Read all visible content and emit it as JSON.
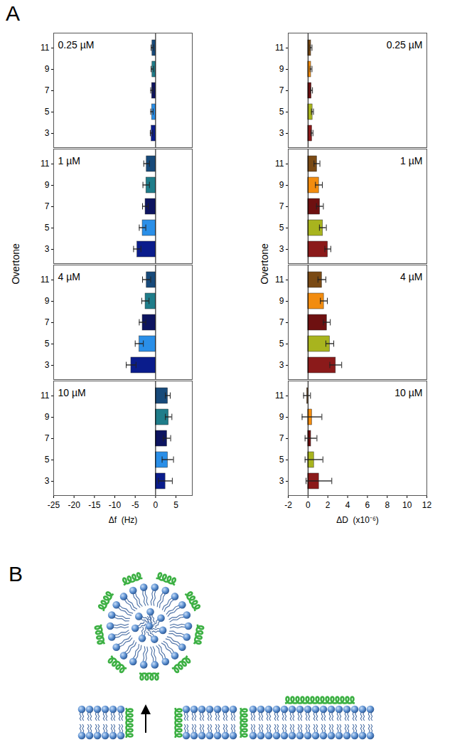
{
  "chart_data": [
    {
      "type": "bar",
      "orientation": "horizontal",
      "title": "0.25 µM",
      "tick_labels": "y",
      "categories": [
        "11",
        "9",
        "7",
        "5",
        "3"
      ],
      "values": [
        -0.8,
        -0.8,
        -0.9,
        -0.9,
        -1.0
      ],
      "errors": [
        0.3,
        0.3,
        0.3,
        0.3,
        0.3
      ],
      "colors": [
        "#174a7a",
        "#1f7d8a",
        "#0d1460",
        "#2a8fe8",
        "#0a1c8c"
      ],
      "xlim": [
        -25,
        9
      ],
      "xticks": [
        -25,
        -20,
        -15,
        -10,
        -5,
        0,
        5
      ]
    },
    {
      "type": "bar",
      "orientation": "horizontal",
      "title": "1 µM",
      "tick_labels": "y",
      "ylabel": "Overtone",
      "categories": [
        "11",
        "9",
        "7",
        "5",
        "3"
      ],
      "values": [
        -2.2,
        -2.3,
        -2.5,
        -3.2,
        -4.5
      ],
      "errors": [
        0.7,
        0.8,
        0.7,
        0.8,
        0.9
      ],
      "colors": [
        "#174a7a",
        "#1f7d8a",
        "#0d1460",
        "#2a8fe8",
        "#0a1c8c"
      ],
      "xlim": [
        -25,
        9
      ],
      "xticks": [
        -25,
        -20,
        -15,
        -10,
        -5,
        0,
        5
      ]
    },
    {
      "type": "bar",
      "orientation": "horizontal",
      "title": "4 µM",
      "tick_labels": "y",
      "categories": [
        "11",
        "9",
        "7",
        "5",
        "3"
      ],
      "values": [
        -2.2,
        -2.5,
        -3.2,
        -4.0,
        -6.0
      ],
      "errors": [
        1.0,
        0.9,
        0.8,
        1.0,
        1.2
      ],
      "colors": [
        "#174a7a",
        "#1f7d8a",
        "#0d1460",
        "#2a8fe8",
        "#0a1c8c"
      ],
      "xlim": [
        -25,
        9
      ],
      "xticks": [
        -25,
        -20,
        -15,
        -10,
        -5,
        0,
        5
      ]
    },
    {
      "type": "bar",
      "orientation": "horizontal",
      "title": "10 µM",
      "xlabel": "Δf  (Hz)",
      "categories": [
        "11",
        "9",
        "7",
        "5",
        "3"
      ],
      "values": [
        3.0,
        3.2,
        2.8,
        3.0,
        2.4
      ],
      "errors": [
        0.6,
        0.8,
        0.9,
        1.4,
        1.7
      ],
      "colors": [
        "#174a7a",
        "#1f7d8a",
        "#0d1460",
        "#2a8fe8",
        "#0a1c8c"
      ],
      "xlim": [
        -25,
        9
      ],
      "xticks": [
        -25,
        -20,
        -15,
        -10,
        -5,
        0,
        5
      ]
    },
    {
      "type": "bar",
      "orientation": "horizontal",
      "title": "0.25 µM",
      "tick_labels": "y",
      "categories": [
        "11",
        "9",
        "7",
        "5",
        "3"
      ],
      "values": [
        0.3,
        0.3,
        0.35,
        0.45,
        0.4
      ],
      "errors": [
        0.1,
        0.1,
        0.1,
        0.1,
        0.1
      ],
      "colors": [
        "#7a4a14",
        "#f28c0f",
        "#6e1010",
        "#a8b41e",
        "#8b1a1a"
      ],
      "xlim": [
        -2,
        12
      ],
      "xticks": [
        -2,
        0,
        2,
        4,
        6,
        8,
        10,
        12
      ]
    },
    {
      "type": "bar",
      "orientation": "horizontal",
      "title": "1 µM",
      "tick_labels": "y",
      "ylabel": "Overtone",
      "categories": [
        "11",
        "9",
        "7",
        "5",
        "3"
      ],
      "values": [
        0.9,
        1.1,
        1.2,
        1.5,
        2.0
      ],
      "errors": [
        0.3,
        0.35,
        0.35,
        0.35,
        0.3
      ],
      "colors": [
        "#7a4a14",
        "#f28c0f",
        "#6e1010",
        "#a8b41e",
        "#8b1a1a"
      ],
      "xlim": [
        -2,
        12
      ],
      "xticks": [
        -2,
        0,
        2,
        4,
        6,
        8,
        10,
        12
      ]
    },
    {
      "type": "bar",
      "orientation": "horizontal",
      "title": "4 µM",
      "tick_labels": "y",
      "categories": [
        "11",
        "9",
        "7",
        "5",
        "3"
      ],
      "values": [
        1.4,
        1.6,
        1.9,
        2.2,
        2.8
      ],
      "errors": [
        0.4,
        0.35,
        0.35,
        0.4,
        0.6
      ],
      "colors": [
        "#7a4a14",
        "#f28c0f",
        "#6e1010",
        "#a8b41e",
        "#8b1a1a"
      ],
      "xlim": [
        -2,
        12
      ],
      "xticks": [
        -2,
        0,
        2,
        4,
        6,
        8,
        10,
        12
      ]
    },
    {
      "type": "bar",
      "orientation": "horizontal",
      "title": "10 µM",
      "xlabel": "ΔD  (x10⁻⁶)",
      "categories": [
        "11",
        "9",
        "7",
        "5",
        "3"
      ],
      "values": [
        -0.1,
        0.4,
        0.3,
        0.6,
        1.1
      ],
      "errors": [
        0.35,
        1.0,
        0.6,
        0.9,
        1.3
      ],
      "colors": [
        "#7a4a14",
        "#f28c0f",
        "#6e1010",
        "#a8b41e",
        "#8b1a1a"
      ],
      "xlim": [
        -2,
        12
      ],
      "xticks": [
        -2,
        0,
        2,
        4,
        6,
        8,
        10,
        12
      ]
    }
  ],
  "figure": {
    "panel_labels": [
      "A",
      "B"
    ]
  }
}
